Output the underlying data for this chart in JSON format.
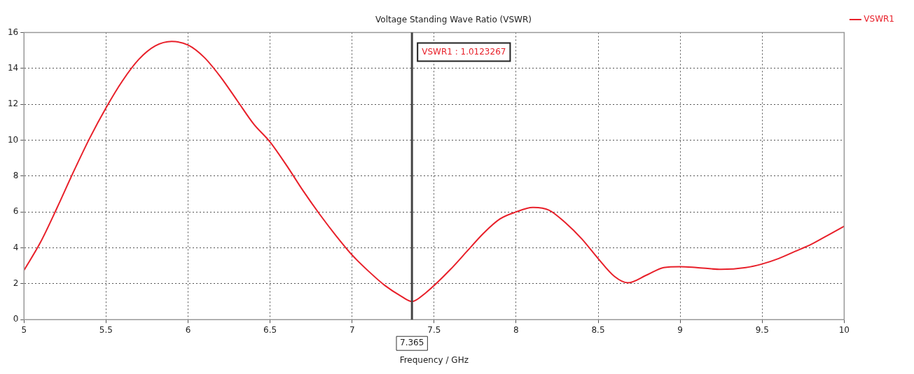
{
  "chart_data": {
    "type": "line",
    "title": "Voltage Standing Wave Ratio (VSWR)",
    "xlabel": "Frequency / GHz",
    "x": [
      5,
      5.1,
      5.2,
      5.3,
      5.4,
      5.5,
      5.6,
      5.7,
      5.8,
      5.9,
      6,
      6.1,
      6.2,
      6.3,
      6.4,
      6.5,
      6.6,
      6.7,
      6.8,
      6.9,
      7,
      7.1,
      7.2,
      7.3,
      7.365,
      7.45,
      7.5,
      7.6,
      7.7,
      7.8,
      7.9,
      8,
      8.1,
      8.2,
      8.3,
      8.4,
      8.5,
      8.6,
      8.68,
      8.8,
      8.9,
      9,
      9.1,
      9.25,
      9.4,
      9.5,
      9.6,
      9.7,
      9.8,
      9.9,
      10
    ],
    "series": [
      {
        "name": "VSWR1",
        "color": "#e8202a",
        "values": [
          2.75,
          4.3,
          6.2,
          8.2,
          10.1,
          11.8,
          13.3,
          14.5,
          15.25,
          15.5,
          15.3,
          14.6,
          13.5,
          12.2,
          10.9,
          9.9,
          8.6,
          7.2,
          5.9,
          4.7,
          3.6,
          2.7,
          1.9,
          1.3,
          1.01,
          1.5,
          1.9,
          2.8,
          3.8,
          4.8,
          5.6,
          6.0,
          6.25,
          6.1,
          5.4,
          4.5,
          3.4,
          2.4,
          2.05,
          2.5,
          2.9,
          2.95,
          2.9,
          2.8,
          2.9,
          3.1,
          3.4,
          3.8,
          4.2,
          4.7,
          5.2
        ]
      }
    ],
    "xlim": [
      5,
      10
    ],
    "xticks": [
      5,
      5.5,
      6,
      6.5,
      7,
      7.5,
      8,
      8.5,
      9,
      9.5,
      10
    ],
    "ylim": [
      0,
      16
    ],
    "yticks": [
      0,
      2,
      4,
      6,
      8,
      10,
      12,
      14,
      16
    ],
    "ref_lines": [
      {
        "axis": "x",
        "value": 7.365,
        "label": "7.365",
        "color": "#444444"
      }
    ],
    "annotations": [
      "VSWR1 : 1.0123267"
    ],
    "grid": true,
    "legend": "top right",
    "marker": "none",
    "line_style": "solid"
  }
}
